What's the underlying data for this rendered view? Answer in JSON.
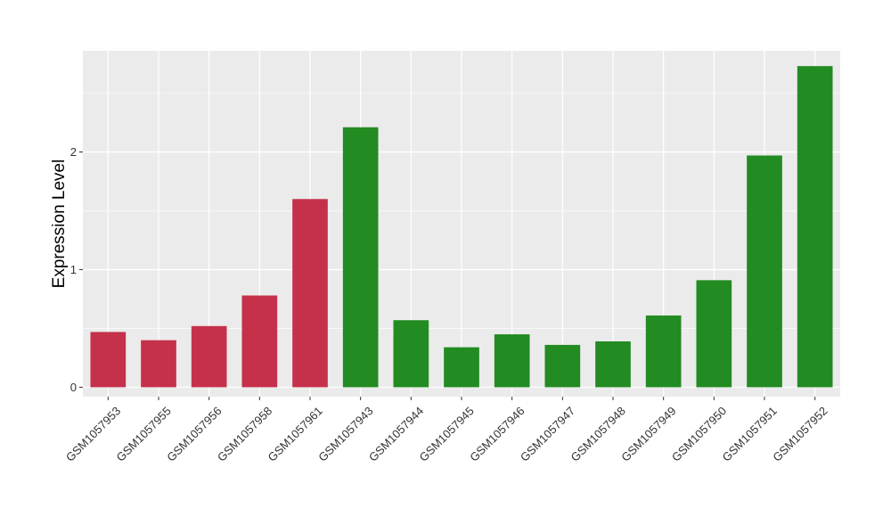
{
  "chart_data": {
    "type": "bar",
    "ylabel": "Expression Level",
    "xlabel": "",
    "ylim": [
      -0.08,
      2.86
    ],
    "yticks": [
      0,
      1,
      2
    ],
    "ytick_labels": [
      "0",
      "1",
      "2"
    ],
    "grid": true,
    "legend": "none",
    "categories": [
      "GSM1057953",
      "GSM1057955",
      "GSM1057956",
      "GSM1057958",
      "GSM1057961",
      "GSM1057943",
      "GSM1057944",
      "GSM1057945",
      "GSM1057946",
      "GSM1057947",
      "GSM1057948",
      "GSM1057949",
      "GSM1057950",
      "GSM1057951",
      "GSM1057952"
    ],
    "values": [
      0.47,
      0.4,
      0.52,
      0.78,
      1.6,
      2.21,
      0.57,
      0.34,
      0.45,
      0.36,
      0.39,
      0.61,
      0.91,
      1.97,
      2.73
    ],
    "bar_colors": [
      "#C5314A",
      "#C5314A",
      "#C5314A",
      "#C5314A",
      "#C5314A",
      "#228B22",
      "#228B22",
      "#228B22",
      "#228B22",
      "#228B22",
      "#228B22",
      "#228B22",
      "#228B22",
      "#228B22",
      "#228B22"
    ],
    "panel_background": "#EBEBEB",
    "grid_color": "#FFFFFF"
  }
}
